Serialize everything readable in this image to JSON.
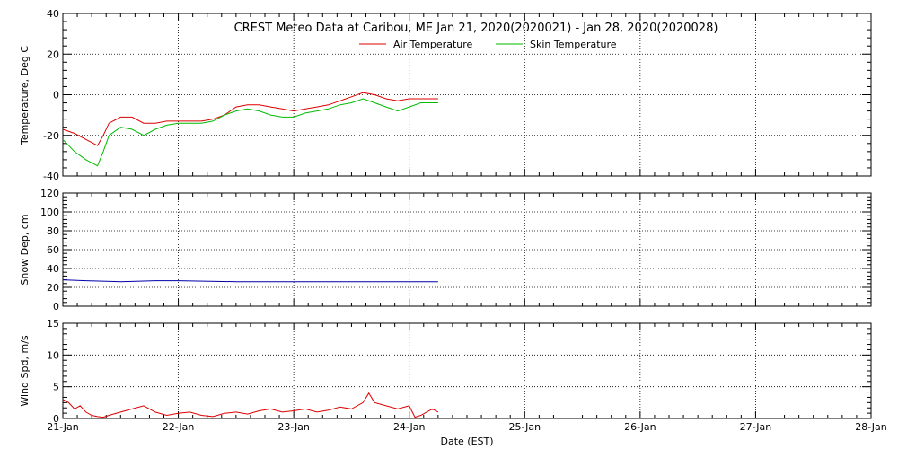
{
  "title": "CREST Meteo Data at Caribou, ME   Jan 21, 2020(2020021) - Jan 28, 2020(2020028)",
  "xlabel": "Date (EST)",
  "x_ticks": [
    "21-Jan",
    "22-Jan",
    "23-Jan",
    "24-Jan",
    "25-Jan",
    "26-Jan",
    "27-Jan",
    "28-Jan"
  ],
  "colors": {
    "air": "#dd0000",
    "skin": "#00bb00",
    "snow": "#0000aa",
    "wind": "#dd0000"
  },
  "chart_data": [
    {
      "type": "line",
      "ylabel": "Temperature, Deg C",
      "ylim": [
        -40,
        40
      ],
      "yticks": [
        -40,
        -20,
        0,
        20,
        40
      ],
      "xlim": [
        0,
        7
      ],
      "grid": true,
      "legend": "top",
      "series": [
        {
          "name": "Air Temperature",
          "x": [
            0,
            0.1,
            0.2,
            0.3,
            0.35,
            0.4,
            0.5,
            0.6,
            0.7,
            0.8,
            0.9,
            1.0,
            1.1,
            1.2,
            1.3,
            1.4,
            1.5,
            1.6,
            1.7,
            1.8,
            1.9,
            2.0,
            2.1,
            2.2,
            2.3,
            2.4,
            2.5,
            2.6,
            2.7,
            2.8,
            2.9,
            3.0,
            3.1,
            3.15,
            3.25
          ],
          "values": [
            -17,
            -19,
            -22,
            -25,
            -20,
            -14,
            -11,
            -11,
            -14,
            -14,
            -13,
            -13,
            -13,
            -13,
            -12,
            -10,
            -6,
            -5,
            -5,
            -6,
            -7,
            -8,
            -7,
            -6,
            -5,
            -3,
            -1,
            1,
            0,
            -2,
            -3,
            -2,
            -2,
            -2,
            -2
          ]
        },
        {
          "name": "Skin Temperature",
          "x": [
            0,
            0.1,
            0.2,
            0.3,
            0.35,
            0.4,
            0.5,
            0.6,
            0.7,
            0.8,
            0.9,
            1.0,
            1.1,
            1.2,
            1.3,
            1.4,
            1.5,
            1.6,
            1.7,
            1.8,
            1.9,
            2.0,
            2.1,
            2.2,
            2.3,
            2.4,
            2.5,
            2.6,
            2.7,
            2.8,
            2.9,
            3.0,
            3.1,
            3.15,
            3.25
          ],
          "values": [
            -22,
            -28,
            -32,
            -35,
            -28,
            -20,
            -16,
            -17,
            -20,
            -17,
            -15,
            -14,
            -14,
            -14,
            -13,
            -10,
            -8,
            -7,
            -8,
            -10,
            -11,
            -11,
            -9,
            -8,
            -7,
            -5,
            -4,
            -2,
            -4,
            -6,
            -8,
            -6,
            -4,
            -4,
            -4
          ]
        }
      ]
    },
    {
      "type": "line",
      "ylabel": "Snow Dep, cm",
      "ylim": [
        0,
        120
      ],
      "yticks": [
        0,
        20,
        40,
        60,
        80,
        100,
        120
      ],
      "xlim": [
        0,
        7
      ],
      "grid": true,
      "series": [
        {
          "x": [
            0,
            0.2,
            0.5,
            0.8,
            1.0,
            1.5,
            2.0,
            2.5,
            3.0,
            3.25
          ],
          "values": [
            28,
            27,
            26,
            27,
            27,
            26,
            26,
            26,
            26,
            26
          ]
        }
      ]
    },
    {
      "type": "line",
      "ylabel": "Wind Spd, m/s",
      "ylim": [
        0,
        15
      ],
      "yticks": [
        0,
        5,
        10,
        15
      ],
      "xlim": [
        0,
        7
      ],
      "grid": true,
      "series": [
        {
          "x": [
            0,
            0.05,
            0.1,
            0.15,
            0.2,
            0.25,
            0.3,
            0.35,
            0.4,
            0.5,
            0.6,
            0.7,
            0.8,
            0.9,
            1.0,
            1.1,
            1.2,
            1.3,
            1.4,
            1.5,
            1.6,
            1.7,
            1.8,
            1.9,
            2.0,
            2.1,
            2.2,
            2.3,
            2.4,
            2.5,
            2.6,
            2.65,
            2.7,
            2.8,
            2.9,
            3.0,
            3.05,
            3.1,
            3.2,
            3.25
          ],
          "values": [
            3,
            2.5,
            1.5,
            2,
            1,
            0.5,
            0.3,
            0.2,
            0.5,
            1,
            1.5,
            2,
            1,
            0.5,
            0.8,
            1,
            0.5,
            0.3,
            0.8,
            1,
            0.7,
            1.2,
            1.5,
            1,
            1.2,
            1.5,
            1,
            1.3,
            1.8,
            1.5,
            2.5,
            4,
            2.5,
            2,
            1.5,
            2,
            0.2,
            0.5,
            1.5,
            1
          ]
        }
      ]
    }
  ]
}
